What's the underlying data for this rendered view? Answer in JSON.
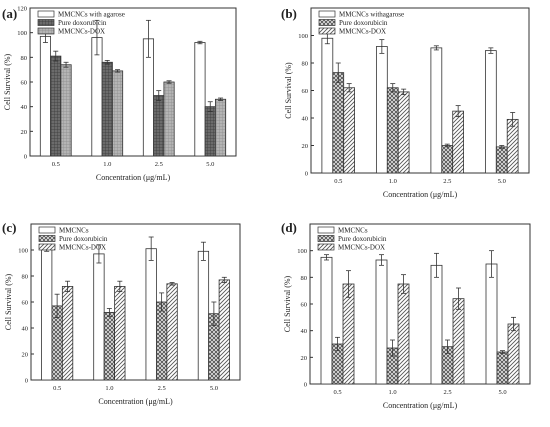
{
  "chart_data": [
    {
      "type": "bar",
      "panel_label": "(a)",
      "xlabel": "Concentration (μg/mL)",
      "ylabel": "Cell Survival (%)",
      "ylim": [
        0,
        120
      ],
      "yticks": [
        "0",
        "20",
        "40",
        "60",
        "80",
        "100",
        "120"
      ],
      "categories": [
        "0.5",
        "1.0",
        "2.5",
        "5.0"
      ],
      "legend_position": "top-left",
      "series": [
        {
          "name": "MMCNCs with agarose",
          "values": [
            97,
            96,
            95,
            92
          ],
          "errors": [
            5,
            14,
            15,
            1
          ],
          "fill": "white"
        },
        {
          "name": "Pure doxorubicin",
          "values": [
            81,
            76,
            49,
            40
          ],
          "errors": [
            4,
            1.5,
            4,
            4
          ],
          "fill": "darkgrid"
        },
        {
          "name": "MMCNCs-DOX",
          "values": [
            74,
            69,
            60,
            46
          ],
          "errors": [
            2,
            1,
            1,
            1
          ],
          "fill": "lightgrid"
        }
      ]
    },
    {
      "type": "bar",
      "panel_label": "(b)",
      "xlabel": "Concentration (μg/mL)",
      "ylabel": "Cell Survival (%)",
      "ylim": [
        0,
        120
      ],
      "yticks": [
        "0",
        "20",
        "40",
        "60",
        "80",
        "100"
      ],
      "categories": [
        "0.5",
        "1.0",
        "2.5",
        "5.0"
      ],
      "legend_position": "top-left",
      "series": [
        {
          "name": "MMCNCs withagarose",
          "values": [
            98,
            92,
            91,
            89
          ],
          "errors": [
            4,
            5,
            1.5,
            2
          ],
          "fill": "white"
        },
        {
          "name": "Pure doxorubicin",
          "values": [
            73,
            62,
            20,
            19
          ],
          "errors": [
            7,
            3,
            1,
            1
          ],
          "fill": "crosshatch"
        },
        {
          "name": "MMCNCs-DOX",
          "values": [
            62,
            59,
            45,
            39
          ],
          "errors": [
            3,
            2,
            4,
            5
          ],
          "fill": "diagonal"
        }
      ]
    },
    {
      "type": "bar",
      "panel_label": "(c)",
      "xlabel": "Concentration (μg/mL)",
      "ylabel": "Cell Survival (%)",
      "ylim": [
        0,
        120
      ],
      "yticks": [
        "0",
        "20",
        "40",
        "60",
        "80",
        "100"
      ],
      "categories": [
        "0.5",
        "1.0",
        "2.5",
        "5.0"
      ],
      "legend_position": "top-left",
      "series": [
        {
          "name": "MMCNCs",
          "values": [
            101,
            97,
            101,
            99
          ],
          "errors": [
            2,
            7,
            9,
            7
          ],
          "fill": "white"
        },
        {
          "name": "Pure doxorubicin",
          "values": [
            57,
            52,
            60,
            51
          ],
          "errors": [
            9,
            3,
            7,
            9
          ],
          "fill": "crosshatch"
        },
        {
          "name": "MMCNCs-DOX",
          "values": [
            72,
            72,
            74,
            77
          ],
          "errors": [
            4,
            4,
            1,
            2
          ],
          "fill": "diagonal"
        }
      ]
    },
    {
      "type": "bar",
      "panel_label": "(d)",
      "xlabel": "Concentration (μg/mL)",
      "ylabel": "Cell Survival (%)",
      "ylim": [
        0,
        120
      ],
      "yticks": [
        "0",
        "20",
        "40",
        "60",
        "80",
        "100"
      ],
      "categories": [
        "0.5",
        "1.0",
        "2.5",
        "5.0"
      ],
      "legend_position": "top-left",
      "series": [
        {
          "name": "MMCNCs",
          "values": [
            95,
            93,
            89,
            90
          ],
          "errors": [
            2,
            4,
            9,
            10
          ],
          "fill": "white"
        },
        {
          "name": "Pure doxorubicin",
          "values": [
            30,
            27,
            28,
            24
          ],
          "errors": [
            5,
            6,
            5,
            1
          ],
          "fill": "crosshatch"
        },
        {
          "name": "MMCNCs-DOX",
          "values": [
            75,
            75,
            64,
            45
          ],
          "errors": [
            10,
            7,
            8,
            5
          ],
          "fill": "diagonal"
        }
      ]
    }
  ]
}
